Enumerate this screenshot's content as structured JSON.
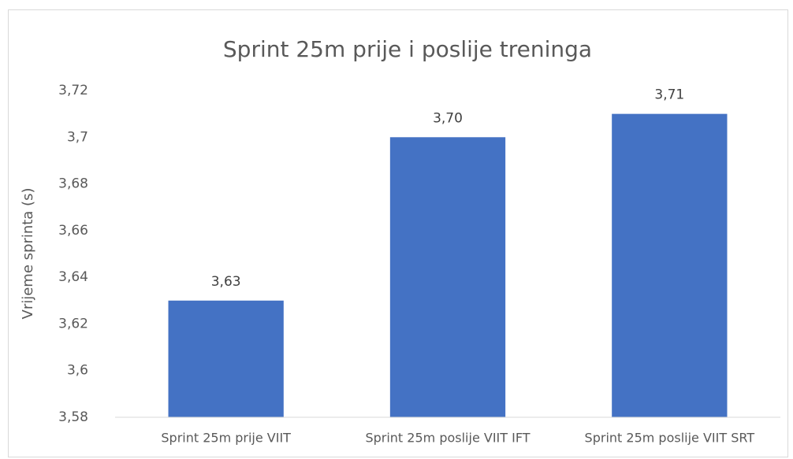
{
  "chart_data": {
    "type": "bar",
    "title": "Sprint 25m prije i poslije treninga",
    "y_label": "Vrijeme sprinta (s)",
    "categories": [
      "Sprint 25m prije VIIT",
      "Sprint 25m poslije VIIT IFT",
      "Sprint 25m poslije VIIT SRT"
    ],
    "values": [
      3.63,
      3.7,
      3.71
    ],
    "value_labels": [
      "3,63",
      "3,70",
      "3,71"
    ],
    "color": "#4472c4",
    "ylim": [
      3.58,
      3.72
    ],
    "yticks": [
      {
        "value": 3.58,
        "label": "3,58"
      },
      {
        "value": 3.6,
        "label": "3,6"
      },
      {
        "value": 3.62,
        "label": "3,62"
      },
      {
        "value": 3.64,
        "label": "3,64"
      },
      {
        "value": 3.66,
        "label": "3,66"
      },
      {
        "value": 3.68,
        "label": "3,68"
      },
      {
        "value": 3.7,
        "label": "3,7"
      },
      {
        "value": 3.72,
        "label": "3,72"
      }
    ],
    "grid": false
  }
}
